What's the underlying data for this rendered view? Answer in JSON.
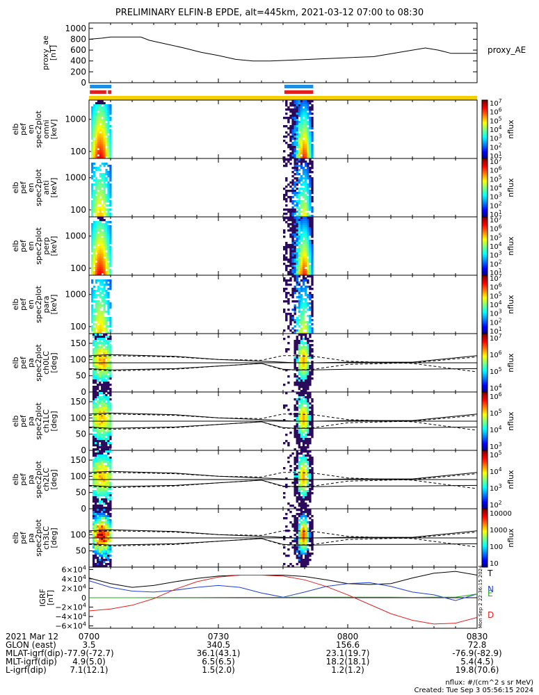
{
  "title": "PRELIMINARY ELFIN-B EPDE, alt=445km, 2021-03-12 07:00 to 08:30",
  "colors": {
    "spec_blue": "#1e8fe0",
    "spec_red": "#e02020",
    "spec_yellow": "#f5d000",
    "igrf_T": "#000000",
    "igrf_N": "#1f3fd0",
    "igrf_E": "#18b018",
    "igrf_D": "#e02020"
  },
  "panels": [
    {
      "id": "proxy-ae",
      "ylabel": [
        "proxy_ae",
        "[nT]"
      ],
      "right_label": "proxy_AE",
      "yticks": [
        "1000",
        "800",
        "600",
        "400",
        "200",
        "0"
      ]
    },
    {
      "id": "omni",
      "ylabel": [
        "elb",
        "pef",
        "en",
        "spec2plot",
        "omni",
        "[keV]"
      ],
      "yticks": [
        "1000",
        "100"
      ],
      "colorbar_ticks": [
        "10^7",
        "10^6",
        "10^5",
        "10^4",
        "10^3",
        "10^2",
        "10^1"
      ],
      "colorbar_label": "nflux"
    },
    {
      "id": "anti",
      "ylabel": [
        "elb",
        "pef",
        "en",
        "spec2plot",
        "anti",
        "[keV]"
      ],
      "yticks": [
        "1000",
        "100"
      ],
      "colorbar_ticks": [
        "10^7",
        "10^6",
        "10^5",
        "10^4",
        "10^3",
        "10^2",
        "10^1"
      ],
      "colorbar_label": "nflux"
    },
    {
      "id": "perp",
      "ylabel": [
        "elb",
        "pef",
        "en",
        "spec2plot",
        "perp",
        "[keV]"
      ],
      "yticks": [
        "1000",
        "100"
      ],
      "colorbar_ticks": [
        "10^7",
        "10^6",
        "10^5",
        "10^4",
        "10^3",
        "10^2",
        "10^1"
      ],
      "colorbar_label": "nflux"
    },
    {
      "id": "para",
      "ylabel": [
        "elb",
        "pef",
        "en",
        "spec2plot",
        "para",
        "[keV]"
      ],
      "yticks": [
        "1000",
        "100"
      ],
      "colorbar_ticks": [
        "10^7",
        "10^6",
        "10^5",
        "10^4",
        "10^3",
        "10^2",
        "10^1"
      ],
      "colorbar_label": "nflux"
    },
    {
      "id": "ch0LC",
      "ylabel": [
        "elb",
        "pef",
        "pa",
        "spec2plot",
        "ch0LC",
        "[deg]"
      ],
      "yticks": [
        "150",
        "100",
        "50",
        "0"
      ],
      "colorbar_ticks": [
        "10^7",
        "10^6",
        "10^5",
        "10^4"
      ],
      "colorbar_label": "nflux"
    },
    {
      "id": "ch1LC",
      "ylabel": [
        "elb",
        "pef",
        "pa",
        "spec2plot",
        "ch1LC",
        "[deg]"
      ],
      "yticks": [
        "150",
        "100",
        "50",
        "0"
      ],
      "colorbar_ticks": [
        "10^6",
        "10^5",
        "10^4",
        "10^3"
      ],
      "colorbar_label": "nflux"
    },
    {
      "id": "ch2LC",
      "ylabel": [
        "elb",
        "pef",
        "pa",
        "spec2plot",
        "ch2LC",
        "[deg]"
      ],
      "yticks": [
        "150",
        "100",
        "50",
        "0"
      ],
      "colorbar_ticks": [
        "10^5",
        "10^4",
        "10^3",
        "10^2"
      ],
      "colorbar_label": "nflux"
    },
    {
      "id": "ch3LC",
      "ylabel": [
        "elb",
        "pef",
        "pa",
        "spec2plot",
        "ch3LC",
        "[deg]"
      ],
      "yticks": [
        "100",
        "50"
      ],
      "colorbar_ticks": [
        "10000",
        "1000",
        "100",
        "10"
      ],
      "colorbar_label": "nflux"
    },
    {
      "id": "igrf",
      "ylabel": [
        "IGRF",
        "[nT]"
      ],
      "yticks": [
        "6×10^4",
        "4×10^4",
        "2×10^4",
        "0",
        "−2×10^4",
        "−4×10^4",
        "−6×10^4"
      ],
      "legend": [
        "T",
        "N",
        "E",
        "D"
      ],
      "side_text": "Mon Sep  2 22:36:15 2024"
    }
  ],
  "chart_data": {
    "type": "line",
    "x_range_minutes": [
      0,
      90
    ],
    "x_tick_labels": [
      "0700",
      "0730",
      "0800",
      "0830"
    ],
    "x_tick_minutes": [
      0,
      30,
      60,
      90
    ],
    "proxy_ae": {
      "x": [
        0,
        3,
        5,
        8,
        12,
        14,
        18,
        22,
        26,
        30,
        34,
        38,
        42,
        48,
        54,
        60,
        66,
        72,
        78,
        81,
        84,
        88,
        90
      ],
      "y": [
        800,
        820,
        840,
        840,
        840,
        780,
        710,
        640,
        560,
        500,
        430,
        400,
        400,
        420,
        440,
        460,
        480,
        560,
        640,
        600,
        540,
        540,
        540
      ],
      "ylim": [
        0,
        1100
      ]
    },
    "science_zone_bars": [
      {
        "row": "blue",
        "from": 0.2,
        "to": 5.2
      },
      {
        "row": "red",
        "from": 0.2,
        "to": 4.0
      },
      {
        "row": "red",
        "from": 4.4,
        "to": 5.2
      },
      {
        "row": "blue",
        "from": 45.3,
        "to": 52.0
      },
      {
        "row": "red",
        "from": 45.3,
        "to": 52.0
      },
      {
        "row": "yellow",
        "from": 0,
        "to": 90
      }
    ],
    "spectrogram_blobs": [
      {
        "from": 0.5,
        "to": 5.2
      },
      {
        "from": 45.0,
        "to": 52.0
      }
    ],
    "pa_loss_cone_lines": {
      "x": [
        0,
        5,
        20,
        30,
        40,
        45,
        48,
        52,
        60,
        75,
        90
      ],
      "solid_upper": [
        112,
        115,
        110,
        100,
        95,
        92,
        90,
        90,
        92,
        92,
        112
      ],
      "solid_lower": [
        72,
        68,
        72,
        80,
        88,
        70,
        68,
        68,
        70,
        70,
        72
      ],
      "dashed_upper": [
        108,
        112,
        108,
        100,
        98,
        112,
        112,
        110,
        95,
        88,
        62
      ],
      "dashed_lower": [
        70,
        65,
        70,
        80,
        88,
        68,
        68,
        70,
        85,
        90,
        108
      ],
      "ylim": [
        0,
        180
      ]
    },
    "igrf": {
      "x": [
        0,
        5,
        10,
        15,
        20,
        25,
        30,
        35,
        40,
        45,
        50,
        55,
        60,
        65,
        70,
        75,
        80,
        85,
        90
      ],
      "series": [
        {
          "name": "T",
          "values": [
            42000,
            30000,
            22000,
            26000,
            34000,
            41000,
            46000,
            48000,
            48000,
            48000,
            45000,
            38000,
            30000,
            28000,
            30000,
            42000,
            52000,
            56000,
            48000
          ]
        },
        {
          "name": "N",
          "values": [
            36000,
            22000,
            14000,
            12000,
            16000,
            22000,
            26000,
            22000,
            10000,
            1000,
            12000,
            24000,
            30000,
            32000,
            24000,
            12000,
            6000,
            -6000,
            8000
          ]
        },
        {
          "name": "E",
          "values": [
            0,
            0,
            0,
            200,
            300,
            500,
            600,
            800,
            800,
            900,
            1000,
            1000,
            1100,
            1200,
            1000,
            800,
            1000,
            1000,
            8000
          ]
        },
        {
          "name": "D",
          "values": [
            -28000,
            -24000,
            -16000,
            -2000,
            18000,
            34000,
            44000,
            48000,
            48000,
            46000,
            38000,
            24000,
            6000,
            -14000,
            -34000,
            -48000,
            -56000,
            -54000,
            -42000
          ]
        }
      ],
      "ylim": [
        -65000,
        65000
      ]
    }
  },
  "footer": {
    "rows": [
      {
        "label": "2021 Mar 12",
        "values": [
          "0700",
          "0730",
          "0800",
          "0830"
        ]
      },
      {
        "label": "GLON (east)",
        "values": [
          "3.5",
          "340.5",
          "156.6",
          "72.8"
        ]
      },
      {
        "label": "MLAT-igrf(dip)",
        "values": [
          "-77.9(-72.7)",
          "36.1(43.1)",
          "23.1(19.7)",
          "-76.9(-82.9)"
        ]
      },
      {
        "label": "MLT-igrf(dip)",
        "values": [
          "4.9(5.0)",
          "6.5(6.5)",
          "18.2(18.1)",
          "5.4(4.5)"
        ]
      },
      {
        "label": "L-igrf(dip)",
        "values": [
          "7.1(12.1)",
          "1.5(2.0)",
          "1.2(1.2)",
          "19.8(70.6)"
        ]
      }
    ],
    "units_note": "nflux: #/(cm^2 s sr MeV)",
    "created": "Created: Tue Sep  3 05:56:15 2024"
  }
}
